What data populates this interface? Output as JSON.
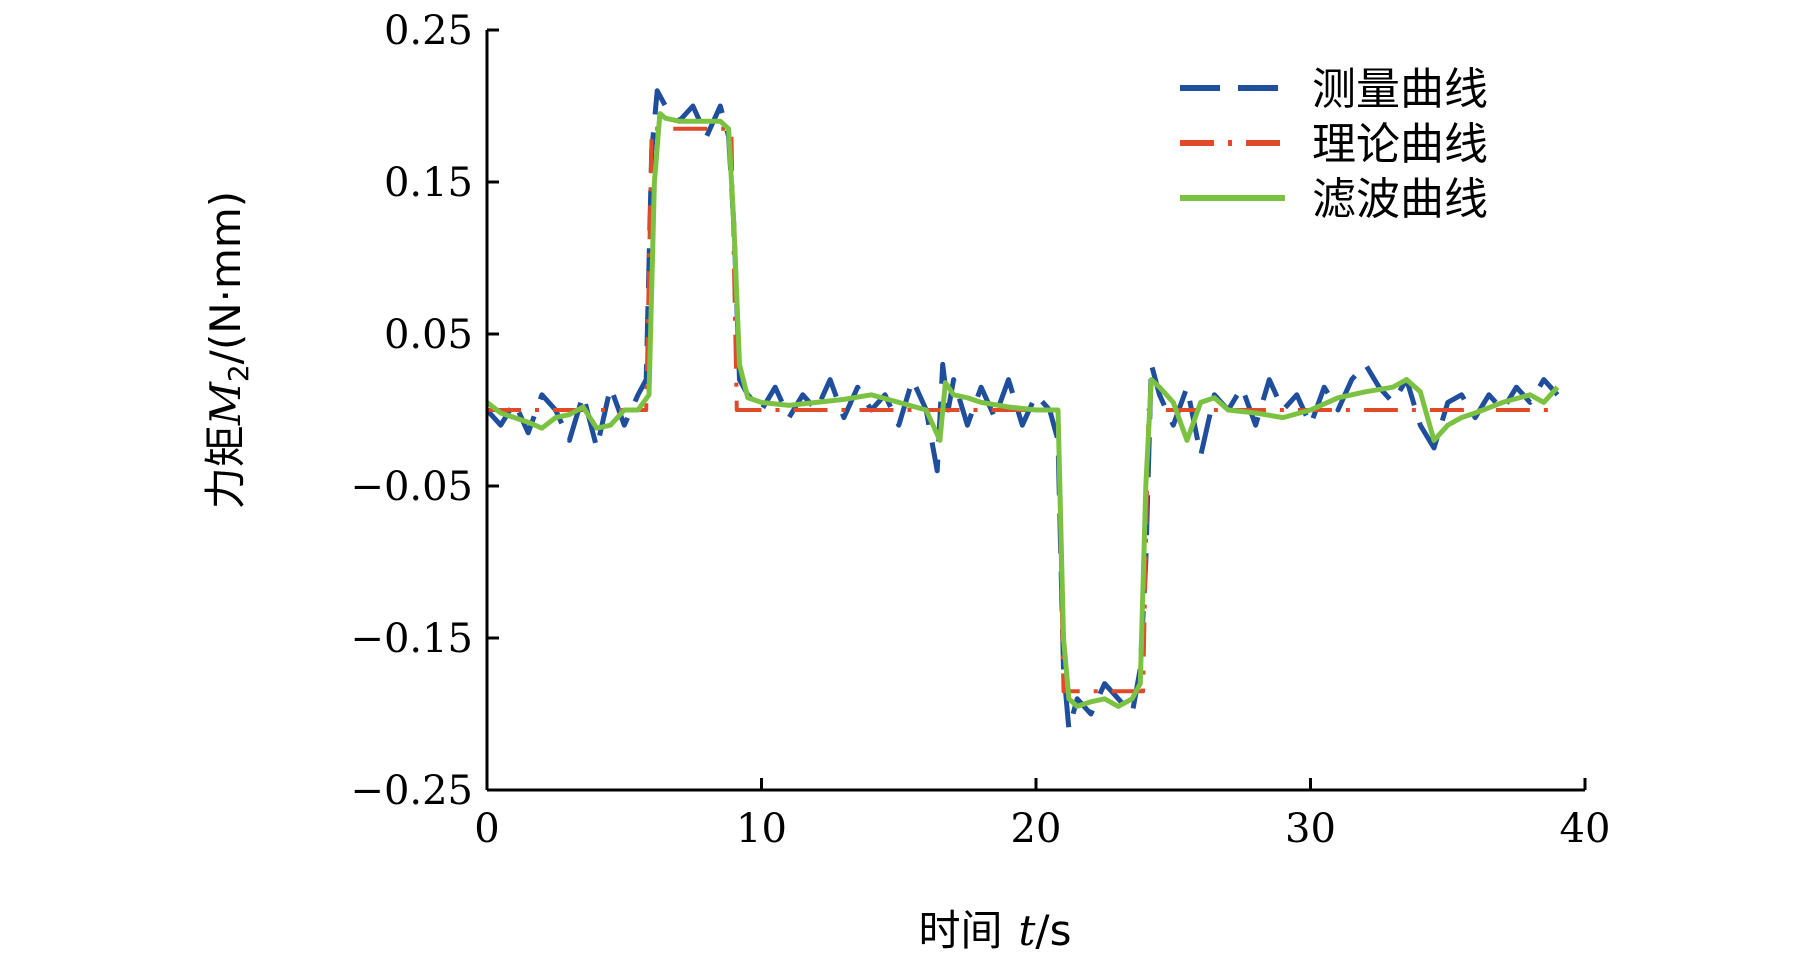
{
  "chart_data": {
    "type": "line",
    "xlabel_main": "时间",
    "xlabel_var": "t",
    "xlabel_unit": "/s",
    "ylabel_main": "力矩",
    "ylabel_var": "M",
    "ylabel_sub": "2",
    "ylabel_unit": "/(N·mm)",
    "xlim": [
      0,
      40
    ],
    "ylim": [
      -0.25,
      0.25
    ],
    "x_ticks": [
      0,
      10,
      20,
      30,
      40
    ],
    "x_tick_labels": [
      "0",
      "10",
      "20",
      "30",
      "40"
    ],
    "y_ticks": [
      -0.25,
      -0.15,
      -0.05,
      0.05,
      0.15,
      0.25
    ],
    "y_tick_labels": [
      "−0.25",
      "−0.15",
      "−0.05",
      "0.05",
      "0.15",
      "0.25"
    ],
    "grid": false,
    "legend_position": "top-right",
    "series": [
      {
        "name": "测量曲线",
        "color": "#1f4e9c",
        "style": "dashed",
        "x": [
          0,
          0.5,
          1,
          1.5,
          2,
          2.5,
          3,
          3.5,
          4,
          4.5,
          5,
          5.5,
          5.8,
          6.0,
          6.2,
          6.5,
          7,
          7.5,
          8,
          8.5,
          8.8,
          9.0,
          9.2,
          9.5,
          10,
          10.5,
          11,
          11.5,
          12,
          12.5,
          13,
          13.5,
          14,
          14.5,
          15,
          15.5,
          16,
          16.4,
          16.6,
          16.8,
          17,
          17.5,
          18,
          18.5,
          19,
          19.5,
          20,
          20.5,
          20.8,
          21.0,
          21.2,
          21.5,
          22,
          22.5,
          23,
          23.5,
          23.8,
          24.0,
          24.2,
          24.5,
          25,
          25.5,
          26,
          26.5,
          27,
          27.5,
          28,
          28.5,
          29,
          29.5,
          30,
          30.5,
          31,
          31.5,
          32,
          32.5,
          33,
          33.5,
          34,
          34.5,
          35,
          35.5,
          36,
          36.5,
          37,
          37.5,
          38,
          38.5,
          39
        ],
        "y": [
          0.0,
          -0.01,
          0.005,
          -0.015,
          0.01,
          0.0,
          -0.02,
          0.01,
          -0.025,
          0.015,
          -0.01,
          0.01,
          0.02,
          0.17,
          0.21,
          0.2,
          0.19,
          0.2,
          0.18,
          0.2,
          0.18,
          0.12,
          0.02,
          0.01,
          0.0,
          0.015,
          -0.005,
          0.01,
          0.0,
          0.02,
          -0.005,
          0.015,
          0.0,
          0.01,
          -0.01,
          0.02,
          0.0,
          -0.04,
          0.03,
          0.0,
          0.02,
          -0.01,
          0.015,
          -0.005,
          0.02,
          -0.01,
          0.01,
          0.0,
          -0.02,
          -0.17,
          -0.21,
          -0.19,
          -0.2,
          -0.18,
          -0.19,
          -0.2,
          -0.17,
          -0.1,
          0.03,
          0.01,
          -0.01,
          0.015,
          -0.03,
          0.01,
          0.0,
          0.015,
          -0.01,
          0.02,
          0.0,
          0.01,
          -0.01,
          0.015,
          0.0,
          0.02,
          0.03,
          0.015,
          0.005,
          0.02,
          -0.01,
          -0.025,
          0.005,
          0.01,
          -0.005,
          0.01,
          0.0,
          0.015,
          0.005,
          0.02,
          0.01
        ]
      },
      {
        "name": "理论曲线",
        "color": "#e0492a",
        "style": "dashdot",
        "x": [
          0,
          5.8,
          6.0,
          8.9,
          9.1,
          20.8,
          21.0,
          23.9,
          24.1,
          39
        ],
        "y": [
          0.0,
          0.0,
          0.185,
          0.185,
          0.0,
          0.0,
          -0.185,
          -0.185,
          0.0,
          0.0
        ]
      },
      {
        "name": "滤波曲线",
        "color": "#7cc242",
        "style": "solid",
        "x": [
          0,
          0.5,
          1,
          1.5,
          2,
          2.5,
          3,
          3.5,
          4,
          4.5,
          5,
          5.5,
          5.9,
          6.1,
          6.3,
          6.5,
          7,
          7.5,
          8,
          8.5,
          8.8,
          9.0,
          9.2,
          9.5,
          10,
          11,
          12,
          13,
          14,
          15,
          16,
          16.5,
          16.7,
          17,
          17.5,
          18,
          19,
          20,
          20.8,
          21.0,
          21.2,
          21.5,
          22,
          22.5,
          23,
          23.5,
          23.8,
          24.0,
          24.2,
          24.5,
          25,
          25.5,
          26,
          26.5,
          27,
          28,
          29,
          30,
          31,
          32,
          33,
          33.5,
          34,
          34.5,
          35,
          35.5,
          36,
          37,
          38,
          38.5,
          39
        ],
        "y": [
          0.005,
          -0.002,
          -0.005,
          -0.008,
          -0.012,
          -0.005,
          -0.003,
          0.002,
          -0.012,
          -0.01,
          0.0,
          0.0,
          0.01,
          0.15,
          0.195,
          0.192,
          0.19,
          0.19,
          0.19,
          0.19,
          0.185,
          0.12,
          0.03,
          0.008,
          0.005,
          0.003,
          0.005,
          0.007,
          0.01,
          0.005,
          0.0,
          -0.02,
          0.018,
          0.01,
          0.008,
          0.005,
          0.002,
          0.0,
          0.0,
          -0.15,
          -0.19,
          -0.195,
          -0.192,
          -0.19,
          -0.195,
          -0.19,
          -0.18,
          -0.05,
          0.02,
          0.015,
          0.005,
          -0.02,
          0.005,
          0.008,
          0.0,
          -0.002,
          -0.005,
          0.0,
          0.008,
          0.012,
          0.015,
          0.02,
          0.012,
          -0.02,
          -0.01,
          -0.005,
          -0.002,
          0.005,
          0.01,
          0.005,
          0.015
        ]
      }
    ]
  }
}
